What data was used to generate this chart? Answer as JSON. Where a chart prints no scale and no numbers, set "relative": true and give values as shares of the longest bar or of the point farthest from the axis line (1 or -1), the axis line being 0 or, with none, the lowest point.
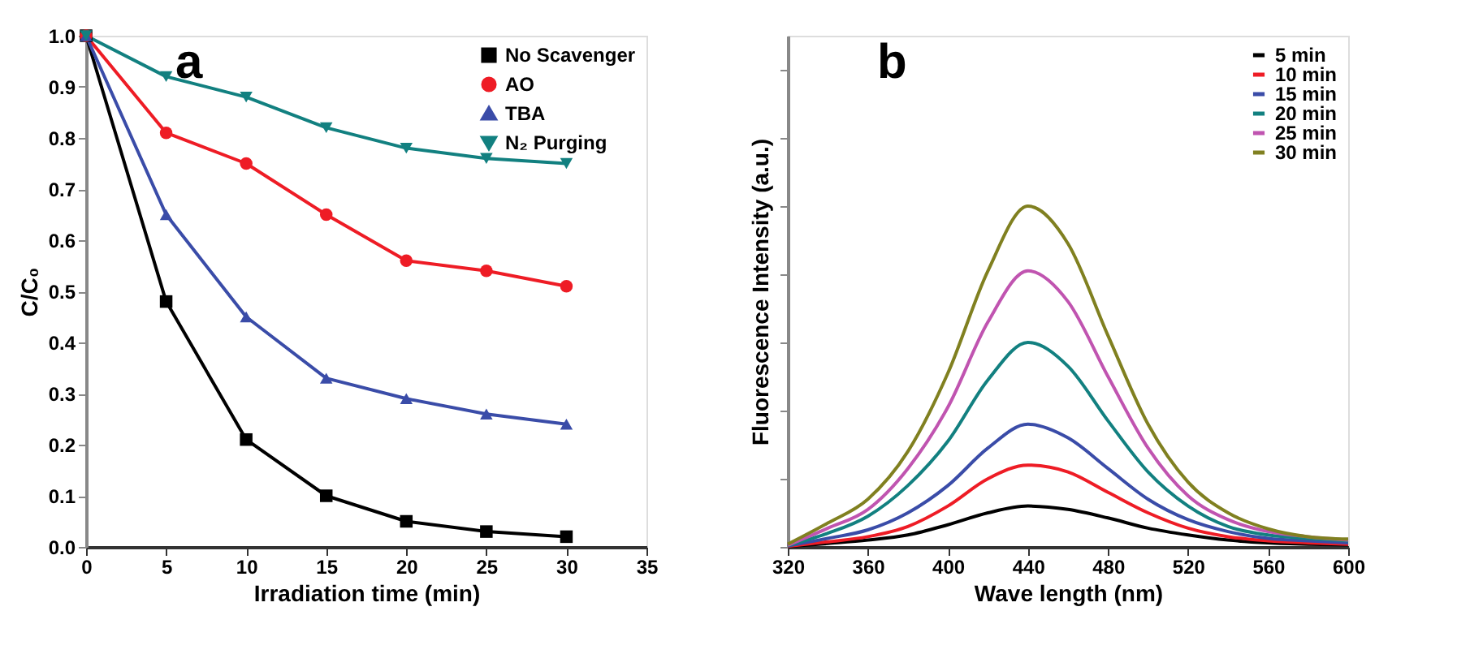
{
  "chart_data": [
    {
      "type": "line",
      "xlabel": "Irradiation time (min)",
      "ylabel": "C/C₀",
      "annotations": [
        "a"
      ],
      "x": [
        0,
        5,
        10,
        15,
        20,
        25,
        30
      ],
      "xlim": [
        0,
        35
      ],
      "xticks": [
        0,
        5,
        10,
        15,
        20,
        25,
        30,
        35
      ],
      "ylim": [
        0,
        1
      ],
      "yticks": [
        {
          "value": 0,
          "label": "0.0"
        },
        0.1,
        0.2,
        0.3,
        0.4,
        0.5,
        0.6,
        0.7,
        0.8,
        0.9,
        {
          "value": 1,
          "label": "1.0"
        }
      ],
      "grid": false,
      "legend": "top right",
      "line_style": "solid",
      "series": [
        {
          "name": "No Scavenger",
          "color": "#000000",
          "marker": "square",
          "values": [
            1.0,
            0.48,
            0.21,
            0.1,
            0.05,
            0.03,
            0.02
          ]
        },
        {
          "name": "AO",
          "color": "#ee1c25",
          "marker": "circle",
          "values": [
            1.0,
            0.81,
            0.75,
            0.65,
            0.56,
            0.54,
            0.51
          ]
        },
        {
          "name": "TBA",
          "color": "#3a4ca8",
          "marker": "triangle",
          "values": [
            1.0,
            0.65,
            0.45,
            0.33,
            0.29,
            0.26,
            0.24
          ]
        },
        {
          "name": "N₂ Purging",
          "color": "#128080",
          "marker": "triangle-down",
          "values": [
            1.0,
            0.92,
            0.88,
            0.82,
            0.78,
            0.76,
            0.75
          ]
        }
      ]
    },
    {
      "type": "line",
      "xlabel": "Wave length (nm)",
      "ylabel": "Fluorescence Intensity (a.u.)",
      "annotations": [
        "b"
      ],
      "relative": true,
      "x": [
        320,
        340,
        360,
        380,
        400,
        420,
        440,
        460,
        480,
        500,
        520,
        540,
        560,
        580,
        600
      ],
      "xlim": [
        320,
        600
      ],
      "xticks": [
        320,
        360,
        400,
        440,
        480,
        520,
        560,
        600
      ],
      "grid": false,
      "legend": "top right",
      "marker": "none",
      "line_style": "solid",
      "series": [
        {
          "name": "5 min",
          "color": "#000000",
          "values": [
            0.001,
            0.01,
            0.02,
            0.035,
            0.065,
            0.1,
            0.12,
            0.11,
            0.085,
            0.055,
            0.035,
            0.02,
            0.012,
            0.008,
            0.006
          ]
        },
        {
          "name": "10 min",
          "color": "#ee1c25",
          "values": [
            0.002,
            0.015,
            0.03,
            0.06,
            0.12,
            0.2,
            0.24,
            0.22,
            0.16,
            0.1,
            0.055,
            0.03,
            0.018,
            0.012,
            0.008
          ]
        },
        {
          "name": "15 min",
          "color": "#3a4ca8",
          "values": [
            0.003,
            0.025,
            0.05,
            0.1,
            0.18,
            0.29,
            0.36,
            0.32,
            0.23,
            0.14,
            0.08,
            0.045,
            0.025,
            0.018,
            0.012
          ]
        },
        {
          "name": "20 min",
          "color": "#128080",
          "values": [
            0.004,
            0.04,
            0.09,
            0.18,
            0.31,
            0.49,
            0.6,
            0.53,
            0.37,
            0.22,
            0.12,
            0.06,
            0.035,
            0.025,
            0.018
          ]
        },
        {
          "name": "25 min",
          "color": "#c054b0",
          "values": [
            0.005,
            0.055,
            0.11,
            0.23,
            0.41,
            0.66,
            0.81,
            0.72,
            0.5,
            0.29,
            0.15,
            0.08,
            0.045,
            0.03,
            0.02
          ]
        },
        {
          "name": "30 min",
          "color": "#808020",
          "values": [
            0.008,
            0.07,
            0.14,
            0.28,
            0.51,
            0.81,
            1.0,
            0.89,
            0.62,
            0.36,
            0.19,
            0.1,
            0.053,
            0.03,
            0.023
          ]
        }
      ]
    }
  ]
}
